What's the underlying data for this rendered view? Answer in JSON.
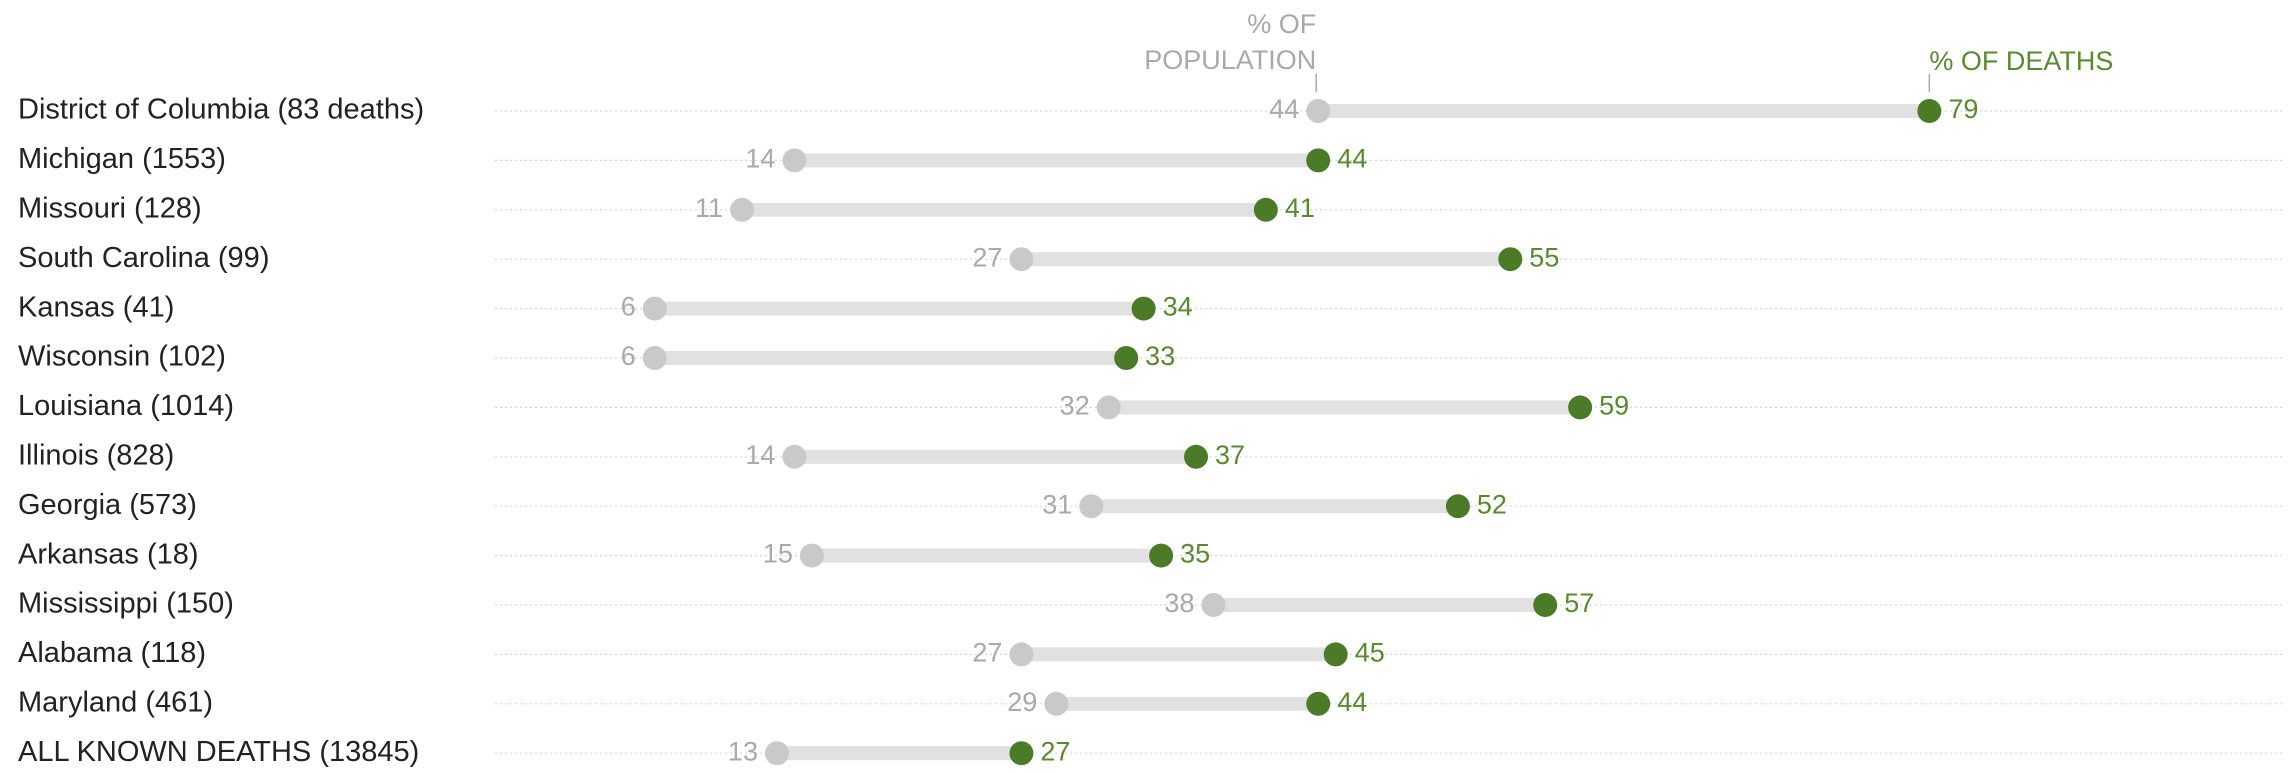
{
  "chart_data": {
    "type": "dumbbell",
    "categories": [
      "District of Columbia (83 deaths)",
      "Michigan (1553)",
      "Missouri (128)",
      "South Carolina (99)",
      "Kansas (41)",
      "Wisconsin (102)",
      "Louisiana (1014)",
      "Illinois (828)",
      "Georgia (573)",
      "Arkansas (18)",
      "Mississippi (150)",
      "Alabama (118)",
      "Maryland (461)",
      "ALL KNOWN DEATHS (13845)"
    ],
    "series": [
      {
        "name": "% OF POPULATION",
        "color": "#c9c9c9",
        "values": [
          44,
          14,
          11,
          27,
          6,
          6,
          32,
          14,
          31,
          15,
          38,
          27,
          29,
          13
        ]
      },
      {
        "name": "% OF DEATHS",
        "color": "#4b7b27",
        "values": [
          79,
          44,
          41,
          55,
          34,
          33,
          59,
          37,
          52,
          35,
          57,
          45,
          44,
          27
        ]
      }
    ]
  }
}
